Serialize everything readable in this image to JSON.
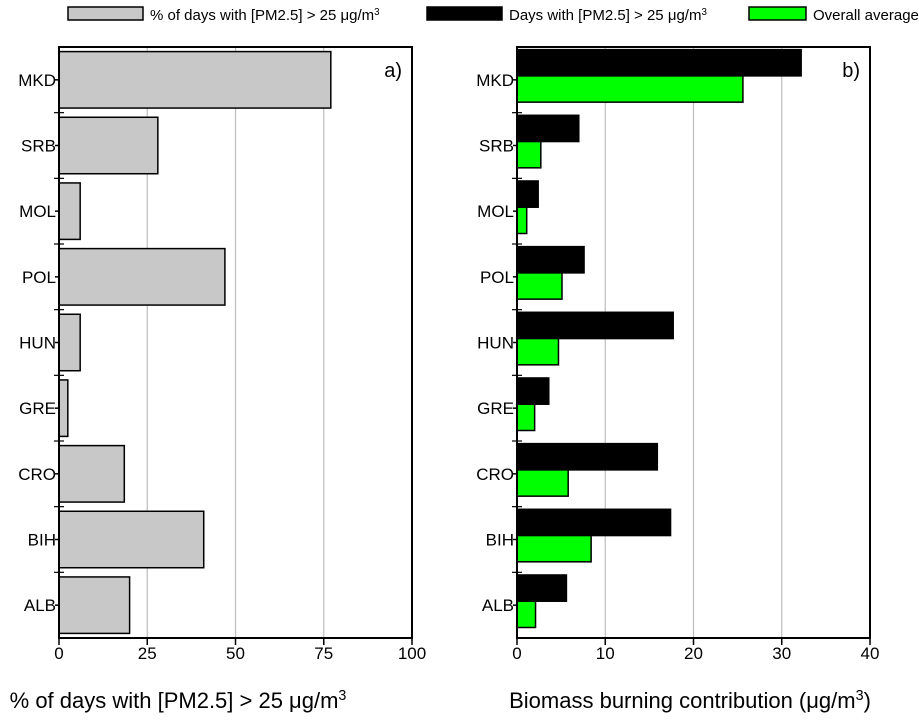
{
  "legend": [
    {
      "label": "% of days with [PM2.5] > 25 μg/m",
      "sup": "3",
      "color": "#c8c8c8"
    },
    {
      "label": "Days with [PM2.5] > 25 μg/m",
      "sup": "3",
      "color": "#000000"
    },
    {
      "label": "Overall average",
      "sup": "",
      "color": "#00ff00"
    }
  ],
  "chart_data": [
    {
      "type": "bar",
      "orientation": "horizontal",
      "panel_label": "a)",
      "categories": [
        "MKD",
        "SRB",
        "MOL",
        "POL",
        "HUN",
        "GRE",
        "CRO",
        "BIH",
        "ALB"
      ],
      "series": [
        {
          "values": [
            77,
            28,
            6,
            47,
            6,
            2.5,
            18.5,
            41,
            20
          ],
          "color": "#c8c8c8"
        }
      ],
      "xlim": [
        0,
        100
      ],
      "xticks": [
        0,
        25,
        50,
        75,
        100
      ],
      "xlabel": "% of days with [PM2.5] > 25 μg/m",
      "xlabel_sup": "3",
      "grid": true
    },
    {
      "type": "bar",
      "orientation": "horizontal",
      "panel_label": "b)",
      "categories": [
        "MKD",
        "SRB",
        "MOL",
        "POL",
        "HUN",
        "GRE",
        "CRO",
        "BIH",
        "ALB"
      ],
      "series": [
        {
          "values": [
            32.2,
            7,
            2.4,
            7.6,
            17.7,
            3.6,
            15.9,
            17.4,
            5.6
          ],
          "color": "#000000"
        },
        {
          "values": [
            25.6,
            2.7,
            1.1,
            5.1,
            4.7,
            2,
            5.8,
            8.4,
            2.1
          ],
          "color": "#00ff00"
        }
      ],
      "xlim": [
        0,
        40
      ],
      "xticks": [
        0,
        10,
        20,
        30,
        40
      ],
      "xlabel": "Biomass burning contribution (μg/m",
      "xlabel_sup": "3",
      "xlabel_suffix": ")",
      "grid": true
    }
  ]
}
